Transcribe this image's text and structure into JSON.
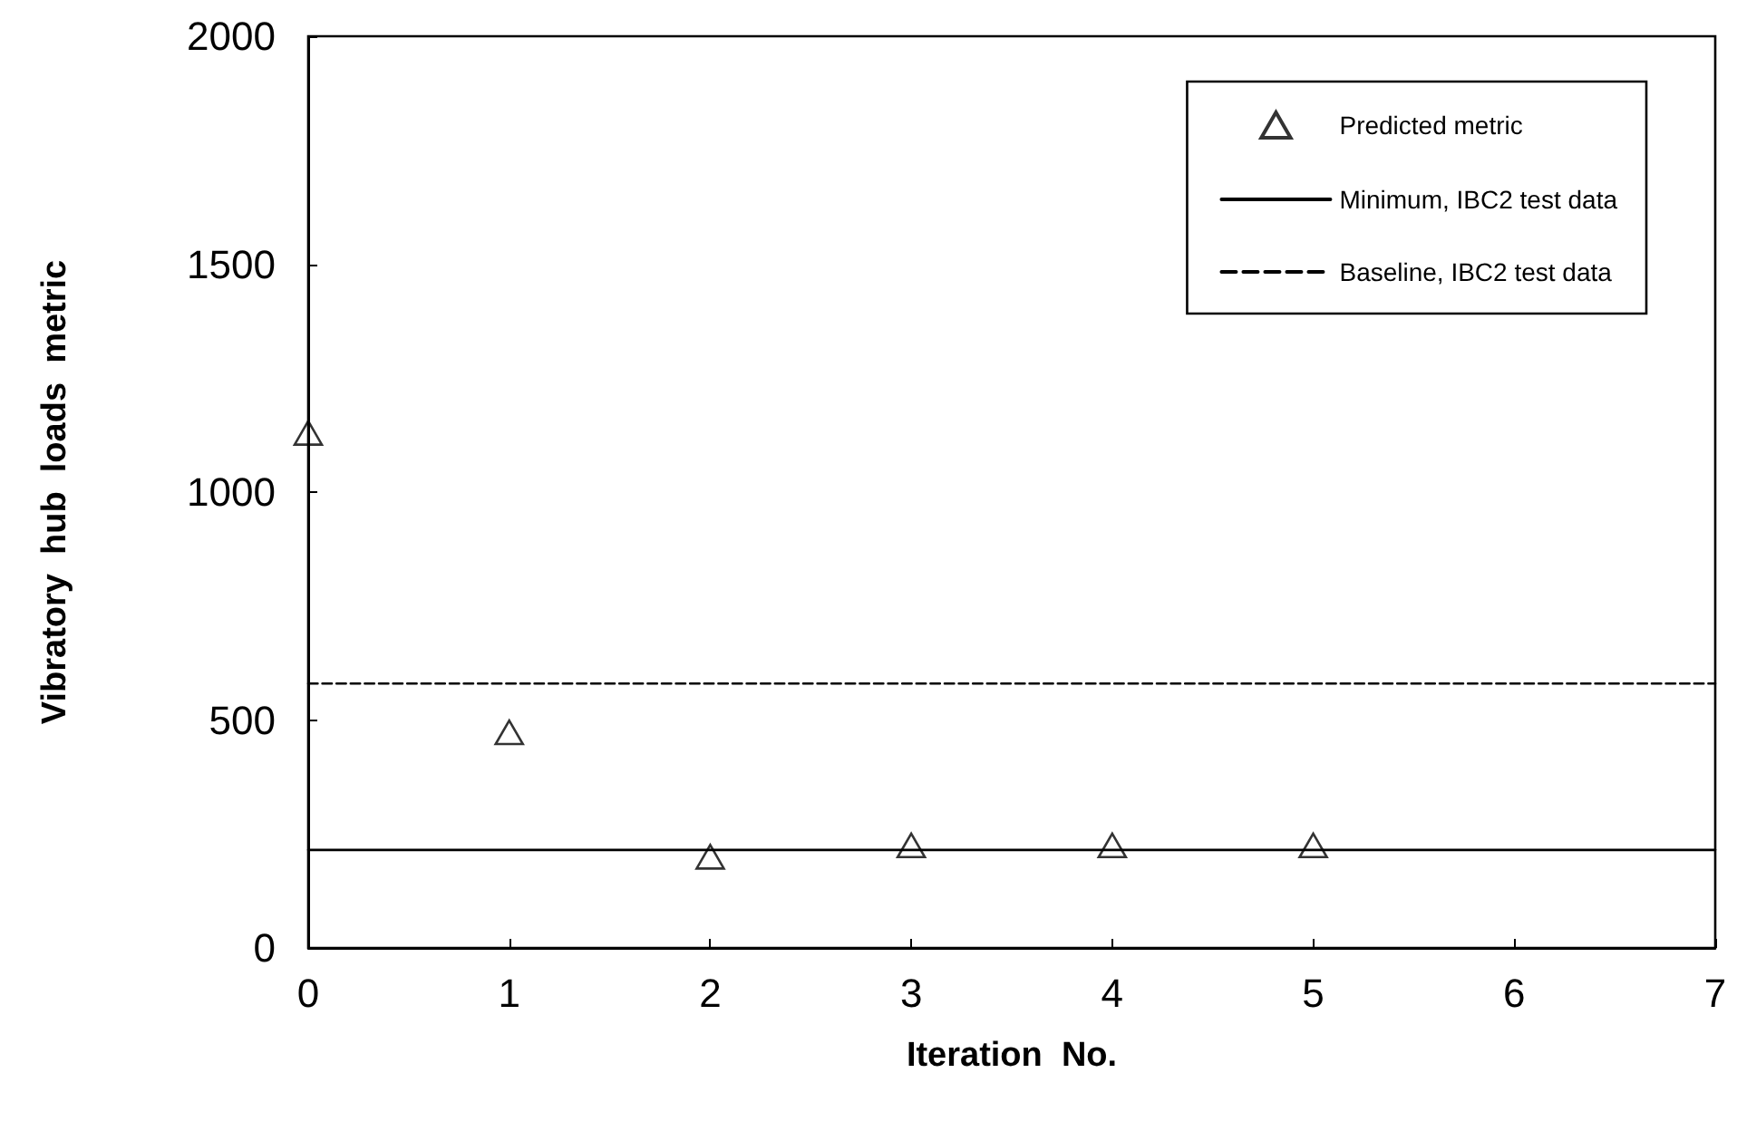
{
  "chart_data": {
    "type": "scatter",
    "xlabel": "Iteration  No.",
    "ylabel": "Vibratory  hub  loads  metric",
    "xlim": [
      0,
      7
    ],
    "xticks": [
      0,
      1,
      2,
      3,
      4,
      5,
      6,
      7
    ],
    "ylim": [
      0,
      2000
    ],
    "yticks": [
      0,
      500,
      1000,
      1500,
      2000
    ],
    "grid": false,
    "legend": "top right",
    "series": [
      {
        "name": "Predicted metric",
        "marker": "triangle",
        "color": "#000000",
        "x": [
          0,
          1,
          2,
          3,
          4,
          5
        ],
        "values": [
          1130,
          473,
          200,
          225,
          225,
          225
        ]
      },
      {
        "name": "Minimum, IBC2 test data",
        "type": "line",
        "line_style": "solid",
        "color": "#000000",
        "x": [
          0,
          7
        ],
        "values": [
          215,
          215
        ]
      },
      {
        "name": "Baseline, IBC2 test data",
        "type": "line",
        "line_style": "dashed",
        "color": "#000000",
        "x": [
          0,
          7
        ],
        "values": [
          580,
          580
        ]
      }
    ]
  }
}
